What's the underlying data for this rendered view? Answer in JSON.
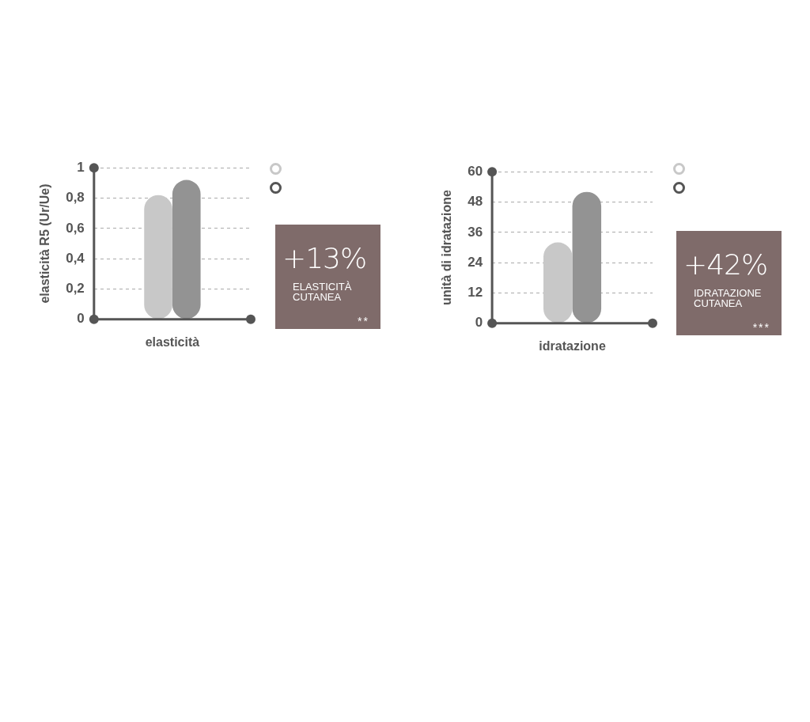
{
  "chart_data": [
    {
      "type": "bar",
      "ylabel": "elasticità R5 (Ur/Ue)",
      "categories": [
        "elasticità"
      ],
      "series": [
        {
          "color": "#c8c8c8",
          "values": [
            0.82
          ]
        },
        {
          "color": "#939393",
          "values": [
            0.92
          ]
        }
      ],
      "ylim": [
        0,
        1
      ],
      "yticks": [
        0,
        {
          "value": 0.2,
          "label": "0,2"
        },
        {
          "value": 0.4,
          "label": "0,4"
        },
        {
          "value": 0.6,
          "label": "0,6"
        },
        {
          "value": 0.8,
          "label": "0,8"
        },
        1
      ],
      "grid": "y",
      "annotations": [
        "+13%",
        "ELASTICITÀ CUTANEA",
        "**"
      ]
    },
    {
      "type": "bar",
      "ylabel": "unità di idratazione",
      "categories": [
        "idratazione"
      ],
      "series": [
        {
          "color": "#c8c8c8",
          "values": [
            32
          ]
        },
        {
          "color": "#939393",
          "values": [
            52
          ]
        }
      ],
      "ylim": [
        0,
        60
      ],
      "yticks": [
        0,
        12,
        24,
        36,
        48,
        60
      ],
      "grid": "y",
      "annotations": [
        "+42%",
        "IDRATAZIONE CUTANEA",
        "***"
      ]
    }
  ]
}
